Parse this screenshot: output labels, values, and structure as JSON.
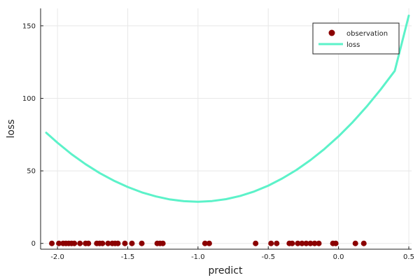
{
  "chart_data": {
    "type": "scatter",
    "xlabel": "predict",
    "ylabel": "loss",
    "xlim": [
      -2.12,
      0.52
    ],
    "ylim": [
      -4,
      162
    ],
    "xticks": [
      -2.0,
      -1.5,
      -1.0,
      -0.5,
      0.0,
      0.5
    ],
    "xtick_labels": [
      "-2.0",
      "-1.5",
      "-1.0",
      "-0.5",
      "0.0",
      "0.5"
    ],
    "yticks": [
      0,
      50,
      100,
      150
    ],
    "ytick_labels": [
      "0",
      "50",
      "100",
      "150"
    ],
    "grid": true,
    "legend_position": "top-right",
    "series": [
      {
        "name": "observation",
        "kind": "scatter",
        "color": "#8b0000",
        "x": [
          -2.04,
          -1.99,
          -1.96,
          -1.94,
          -1.92,
          -1.9,
          -1.88,
          -1.84,
          -1.8,
          -1.78,
          -1.72,
          -1.7,
          -1.68,
          -1.64,
          -1.61,
          -1.59,
          -1.57,
          -1.52,
          -1.47,
          -1.4,
          -1.29,
          -1.27,
          -1.25,
          -0.95,
          -0.92,
          -0.59,
          -0.48,
          -0.44,
          -0.35,
          -0.33,
          -0.29,
          -0.26,
          -0.23,
          -0.2,
          -0.17,
          -0.14,
          -0.04,
          -0.02,
          0.12,
          0.18
        ],
        "y": [
          0,
          0,
          0,
          0,
          0,
          0,
          0,
          0,
          0,
          0,
          0,
          0,
          0,
          0,
          0,
          0,
          0,
          0,
          0,
          0,
          0,
          0,
          0,
          0,
          0,
          0,
          0,
          0,
          0,
          0,
          0,
          0,
          0,
          0,
          0,
          0,
          0,
          0,
          0,
          0
        ]
      },
      {
        "name": "loss",
        "kind": "line",
        "color": "#5cf2c9",
        "x": [
          -2.08,
          -2.0,
          -1.9,
          -1.8,
          -1.7,
          -1.6,
          -1.5,
          -1.4,
          -1.3,
          -1.2,
          -1.1,
          -1.0,
          -0.9,
          -0.8,
          -0.7,
          -0.6,
          -0.5,
          -0.4,
          -0.3,
          -0.2,
          -0.1,
          0.0,
          0.1,
          0.2,
          0.3,
          0.4,
          0.5
        ],
        "y": [
          76.3,
          69.4,
          61.5,
          54.6,
          48.5,
          43.3,
          38.9,
          35.2,
          32.4,
          30.3,
          29.1,
          28.7,
          29.2,
          30.5,
          32.7,
          35.8,
          39.8,
          44.8,
          50.6,
          57.4,
          65.1,
          73.8,
          83.5,
          94.3,
          106.1,
          118.9,
          157
        ]
      }
    ]
  }
}
